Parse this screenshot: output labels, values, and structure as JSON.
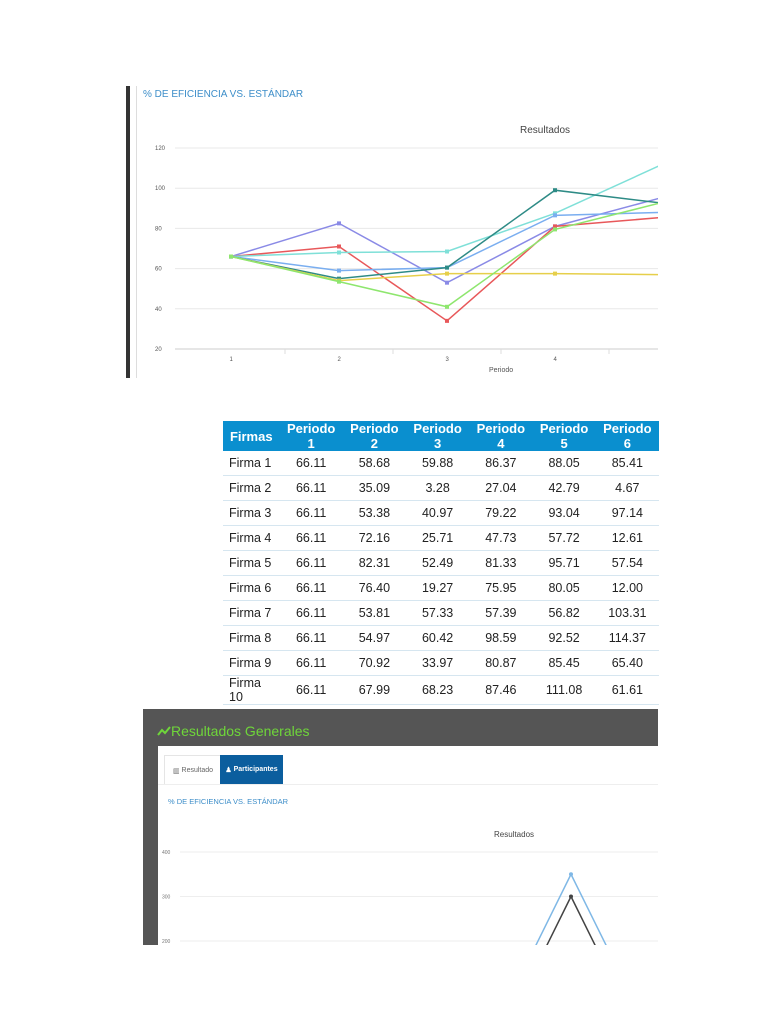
{
  "chart1": {
    "header": "% DE EFICIENCIA VS. ESTÁNDAR",
    "chart_data": {
      "type": "line",
      "title": "Resultados",
      "xlabel": "Periodo",
      "ylabel": "",
      "x": [
        1,
        2,
        3,
        4,
        5
      ],
      "xticks": [
        "1",
        "2",
        "3",
        "4"
      ],
      "yticks": [
        20,
        40,
        60,
        80,
        100,
        120
      ],
      "ylim": [
        20,
        120
      ],
      "grid": true,
      "series": [
        {
          "color": "#8a8ae6",
          "values": [
            66,
            82.5,
            53,
            81,
            95.5
          ]
        },
        {
          "color": "#e8585a",
          "values": [
            66,
            71,
            34,
            81,
            85.5
          ]
        },
        {
          "color": "#7fe0d8",
          "values": [
            66,
            68,
            68.5,
            87.5,
            112
          ]
        },
        {
          "color": "#7aaef0",
          "values": [
            66,
            59,
            60.5,
            86.5,
            88
          ]
        },
        {
          "color": "#2e8b86",
          "values": [
            66,
            55,
            60.5,
            99,
            92.5
          ]
        },
        {
          "color": "#e6cf4a",
          "values": [
            66,
            54,
            57.5,
            57.5,
            57
          ]
        },
        {
          "color": "#8ee66e",
          "values": [
            66,
            53.5,
            41,
            79.5,
            93
          ]
        }
      ]
    }
  },
  "table": {
    "headers": [
      "Firmas",
      "Periodo 1",
      "Periodo 2",
      "Periodo 3",
      "Periodo 4",
      "Periodo 5",
      "Periodo 6"
    ],
    "rows": [
      [
        "Firma 1",
        "66.11",
        "58.68",
        "59.88",
        "86.37",
        "88.05",
        "85.41"
      ],
      [
        "Firma 2",
        "66.11",
        "35.09",
        "3.28",
        "27.04",
        "42.79",
        "4.67"
      ],
      [
        "Firma 3",
        "66.11",
        "53.38",
        "40.97",
        "79.22",
        "93.04",
        "97.14"
      ],
      [
        "Firma 4",
        "66.11",
        "72.16",
        "25.71",
        "47.73",
        "57.72",
        "12.61"
      ],
      [
        "Firma 5",
        "66.11",
        "82.31",
        "52.49",
        "81.33",
        "95.71",
        "57.54"
      ],
      [
        "Firma 6",
        "66.11",
        "76.40",
        "19.27",
        "75.95",
        "80.05",
        "12.00"
      ],
      [
        "Firma 7",
        "66.11",
        "53.81",
        "57.33",
        "57.39",
        "56.82",
        "103.31"
      ],
      [
        "Firma 8",
        "66.11",
        "54.97",
        "60.42",
        "98.59",
        "92.52",
        "114.37"
      ],
      [
        "Firma 9",
        "66.11",
        "70.92",
        "33.97",
        "80.87",
        "85.45",
        "65.40"
      ],
      [
        "Firma 10",
        "66.11",
        "67.99",
        "68.23",
        "87.46",
        "111.08",
        "61.61"
      ]
    ]
  },
  "panel": {
    "title": "Resultados Generales",
    "title_color": "#6fd63a",
    "icon": "trend-line-icon",
    "tabs": [
      {
        "label": "Resultado",
        "icon": "bar-chart-icon",
        "active": false
      },
      {
        "label": "Participantes",
        "icon": "user-icon",
        "active": true
      }
    ],
    "header": "% DE EFICIENCIA VS. ESTÁNDAR",
    "chart_data": {
      "type": "line",
      "title": "Resultados",
      "yticks": [
        200,
        300,
        400
      ],
      "series": [
        {
          "color": "#7fb8e6",
          "peak": 350
        },
        {
          "color": "#444444",
          "peak": 300
        }
      ]
    }
  }
}
